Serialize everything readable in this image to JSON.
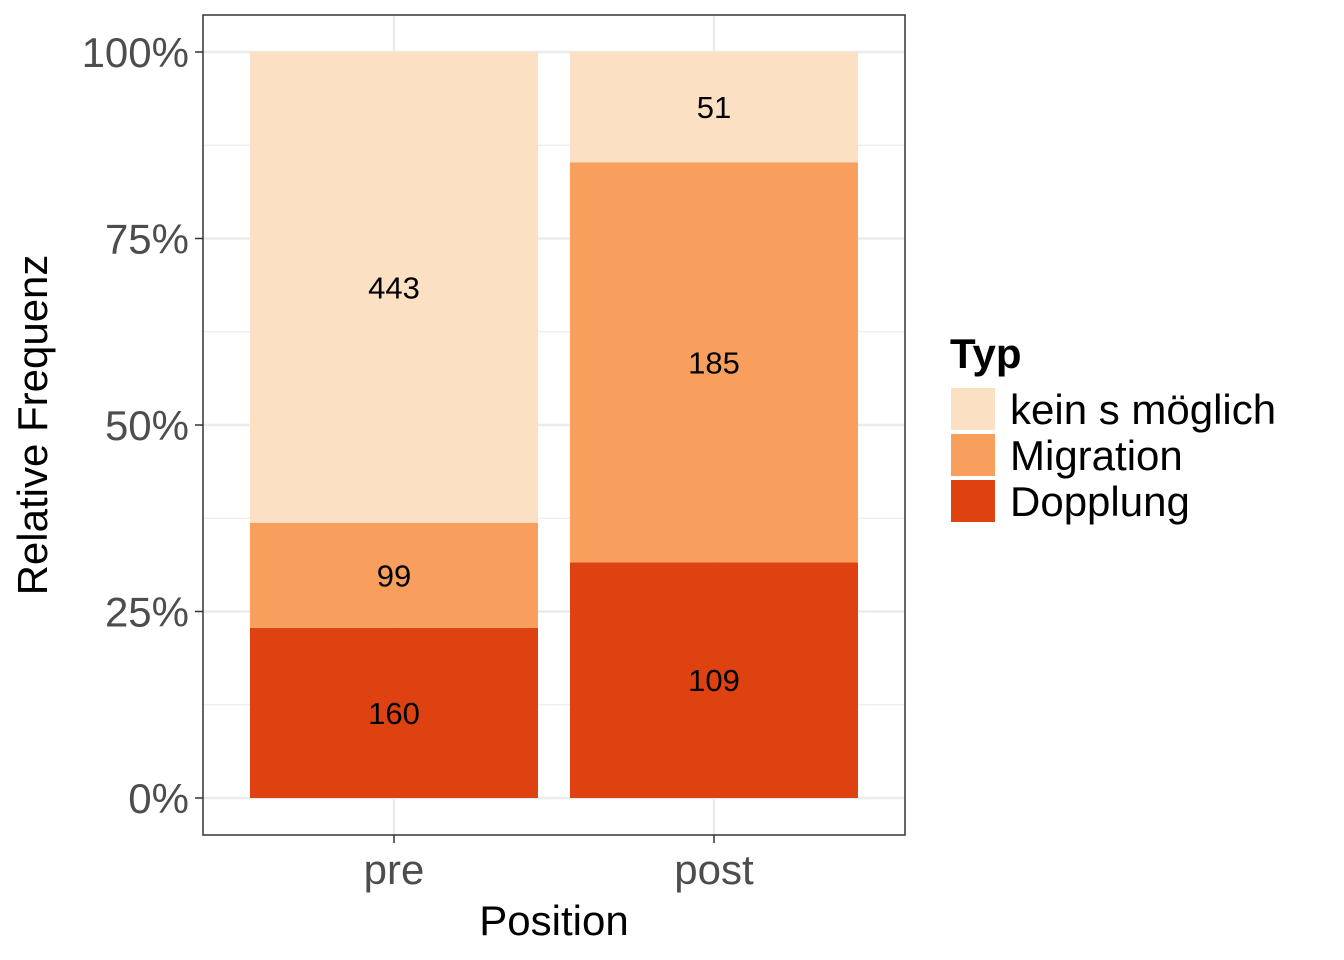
{
  "chart_data": {
    "type": "bar",
    "stacked": true,
    "normalized": true,
    "categories": [
      "pre",
      "post"
    ],
    "series": [
      {
        "name": "Dopplung",
        "values": [
          160,
          109
        ],
        "labels": [
          "160",
          "109"
        ],
        "color": "#dd4210"
      },
      {
        "name": "Migration",
        "values": [
          99,
          185
        ],
        "labels": [
          "99",
          "185"
        ],
        "color": "#f99f5e"
      },
      {
        "name": "kein s möglich",
        "values": [
          443,
          51
        ],
        "labels": [
          "443",
          "51"
        ],
        "color": "#fce0c4"
      }
    ],
    "xlabel": "Position",
    "ylabel": "Relative Frequenz",
    "ylim": [
      0,
      1
    ],
    "yticks": [
      0,
      0.25,
      0.5,
      0.75,
      1
    ],
    "ytick_labels": [
      "0%",
      "25%",
      "50%",
      "75%",
      "100%"
    ],
    "grid": true,
    "legend": {
      "title": "Typ",
      "position": "right",
      "items": [
        "kein s möglich",
        "Migration",
        "Dopplung"
      ]
    }
  }
}
